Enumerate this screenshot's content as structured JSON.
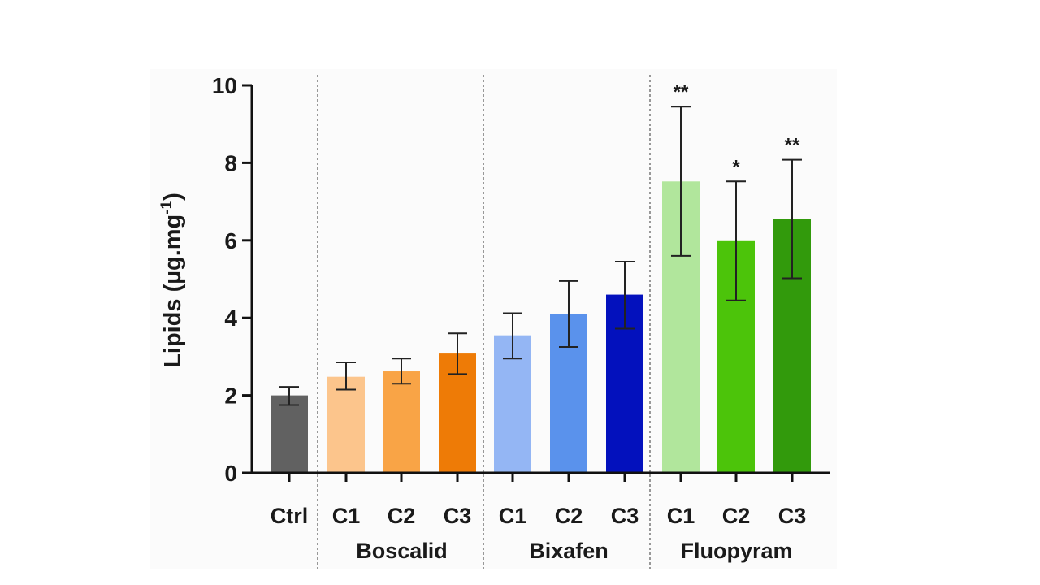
{
  "chart_data": {
    "type": "bar",
    "title": "",
    "xlabel": "",
    "ylabel": "Lipids (µg.mg",
    "ylabel_superscript": "-1",
    "ylabel_close": ")",
    "ylim": [
      0,
      10
    ],
    "yticks": [
      "0",
      "2",
      "4",
      "6",
      "8",
      "10"
    ],
    "grid": false,
    "categories": [
      "Ctrl",
      "C1",
      "C2",
      "C3",
      "C1",
      "C2",
      "C3",
      "C1",
      "C2",
      "C3"
    ],
    "groups": [
      {
        "name": "",
        "indices": [
          0
        ]
      },
      {
        "name": "Boscalid",
        "indices": [
          1,
          2,
          3
        ]
      },
      {
        "name": "Bixafen",
        "indices": [
          4,
          5,
          6
        ]
      },
      {
        "name": "Fluopyram",
        "indices": [
          7,
          8,
          9
        ]
      }
    ],
    "values": [
      2.0,
      2.48,
      2.62,
      3.08,
      3.55,
      4.1,
      4.6,
      7.52,
      6.0,
      6.55
    ],
    "err_low": [
      1.75,
      2.15,
      2.3,
      2.55,
      2.95,
      3.25,
      3.72,
      5.6,
      4.45,
      5.02
    ],
    "err_high": [
      2.22,
      2.85,
      2.95,
      3.6,
      4.12,
      4.95,
      5.45,
      9.45,
      7.52,
      8.08
    ],
    "significance": [
      "",
      "",
      "",
      "",
      "",
      "",
      "",
      "**",
      "*",
      "**"
    ],
    "colors": [
      "#616161",
      "#fcc58c",
      "#f9a446",
      "#ee7b06",
      "#94b6f4",
      "#5a92ec",
      "#0311bd",
      "#b1e69c",
      "#4cc40a",
      "#329a0c"
    ]
  }
}
